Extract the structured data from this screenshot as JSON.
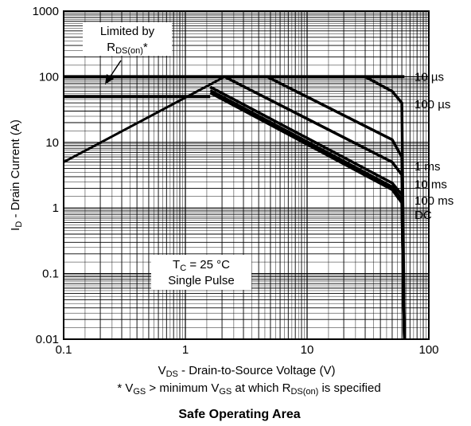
{
  "chart_data": {
    "type": "line",
    "title": "Safe Operating Area",
    "xlabel": {
      "main": "V",
      "sub": "DS",
      "rest": " - Drain-to-Source Voltage (V)"
    },
    "ylabel": {
      "main": "I",
      "sub": "D",
      "rest": " - Drain Current (A)"
    },
    "xscale": "log",
    "yscale": "log",
    "xlim": [
      0.1,
      100
    ],
    "ylim": [
      0.01,
      1000
    ],
    "grid": true,
    "x_ticks": [
      {
        "value": 0.1,
        "label": "0.1"
      },
      {
        "value": 1,
        "label": "1"
      },
      {
        "value": 10,
        "label": "10"
      },
      {
        "value": 100,
        "label": "100"
      }
    ],
    "y_ticks": [
      {
        "value": 0.01,
        "label": "0.01"
      },
      {
        "value": 0.1,
        "label": "0.1"
      },
      {
        "value": 1,
        "label": "1"
      },
      {
        "value": 10,
        "label": "10"
      },
      {
        "value": 100,
        "label": "100"
      },
      {
        "value": 1000,
        "label": "1000"
      }
    ],
    "footnote": [
      {
        "text": "* V",
        "sub": false
      },
      {
        "text": "GS",
        "sub": true
      },
      {
        "text": " > minimum V",
        "sub": false
      },
      {
        "text": "GS",
        "sub": true
      },
      {
        "text": " at which R",
        "sub": false
      },
      {
        "text": "DS(on)",
        "sub": true
      },
      {
        "text": " is specified",
        "sub": false
      }
    ],
    "annotations": {
      "rds_limit_line1": "Limited by",
      "rds_limit_main": "R",
      "rds_limit_sub": "DS(on)",
      "rds_limit_suffix": "*",
      "conditions_main": "T",
      "conditions_sub": "C",
      "conditions_rest": " = 25 °C",
      "conditions_line2": "Single Pulse"
    },
    "series": [
      {
        "name": "10 µs",
        "points": [
          [
            0.1,
            100
          ],
          [
            30,
            100
          ],
          [
            50,
            60
          ],
          [
            60,
            40
          ],
          [
            63,
            0.01
          ]
        ]
      },
      {
        "name": "100 µs",
        "points": [
          [
            4.7,
            100
          ],
          [
            50,
            11
          ],
          [
            60,
            6
          ],
          [
            63,
            0.01
          ]
        ]
      },
      {
        "name": "1 ms",
        "points": [
          [
            2.1,
            100
          ],
          [
            50,
            5
          ],
          [
            60,
            3.2
          ],
          [
            63,
            0.01
          ]
        ]
      },
      {
        "name": "10 ms",
        "points": [
          [
            1.6,
            70
          ],
          [
            50,
            2.4
          ],
          [
            60,
            1.6
          ],
          [
            63,
            0.01
          ]
        ]
      },
      {
        "name": "100 ms",
        "points": [
          [
            1.6,
            62
          ],
          [
            50,
            2.1
          ],
          [
            60,
            1.35
          ],
          [
            63,
            0.01
          ]
        ]
      },
      {
        "name": "DC",
        "points": [
          [
            1.6,
            57
          ],
          [
            50,
            1.9
          ],
          [
            60,
            1.2
          ],
          [
            63,
            0.01
          ]
        ]
      }
    ],
    "rds_limit_line": [
      [
        0.1,
        5
      ],
      [
        2.1,
        100
      ]
    ],
    "limit_lines": [
      {
        "points": [
          [
            0.1,
            100
          ],
          [
            63,
            100
          ]
        ]
      },
      {
        "points": [
          [
            0.1,
            50
          ],
          [
            1.6,
            50
          ]
        ]
      }
    ],
    "series_label_anchors": [
      {
        "series": "10 µs",
        "y": 100
      },
      {
        "series": "100 µs",
        "y": 38
      },
      {
        "series": "1 ms",
        "y": 4.3
      },
      {
        "series": "10 ms",
        "y": 2.3
      },
      {
        "series": "100 ms",
        "y": 1.3
      },
      {
        "series": "DC",
        "y": 0.78
      }
    ]
  }
}
